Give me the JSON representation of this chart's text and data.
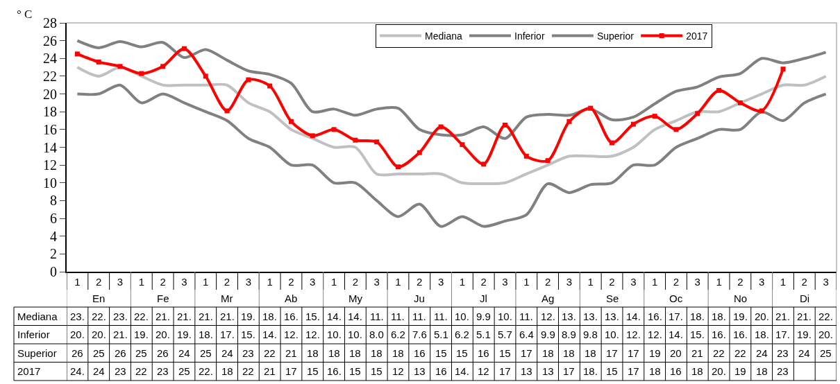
{
  "chart_data": {
    "type": "line",
    "ylabel": "° C",
    "ylim": [
      0,
      28
    ],
    "yticks": [
      0,
      2,
      4,
      6,
      8,
      10,
      12,
      14,
      16,
      18,
      20,
      22,
      24,
      26,
      28
    ],
    "legend": "top",
    "line_style": "solid",
    "categories": [
      "1",
      "2",
      "3",
      "1",
      "2",
      "3",
      "1",
      "2",
      "3",
      "1",
      "2",
      "3",
      "1",
      "2",
      "3",
      "1",
      "2",
      "3",
      "1",
      "2",
      "3",
      "1",
      "2",
      "3",
      "1",
      "2",
      "3",
      "1",
      "2",
      "3",
      "1",
      "2",
      "3",
      "1",
      "2",
      "3"
    ],
    "annotations": [
      "En",
      "Fe",
      "Mr",
      "Ab",
      "My",
      "Ju",
      "Jl",
      "Ag",
      "Se",
      "Oc",
      "No",
      "Di"
    ],
    "series": [
      {
        "name": "Mediana",
        "color": "#c0c0c0",
        "marker": "none",
        "values": [
          23,
          22,
          23,
          22,
          21,
          21,
          21,
          21,
          19,
          18,
          16,
          15,
          14,
          14,
          11,
          11,
          11,
          11,
          10,
          9.9,
          10,
          11,
          12,
          13,
          13,
          13,
          14,
          16,
          17,
          18,
          18,
          19,
          20,
          21,
          21,
          22
        ],
        "value_labels": [
          "23.",
          "22.",
          "23.",
          "22.",
          "21.",
          "21.",
          "21.",
          "21.",
          "19.",
          "18.",
          "16.",
          "15.",
          "14.",
          "14.",
          "11.",
          "11.",
          "11.",
          "11.",
          "10.",
          "9.9",
          "10.",
          "11.",
          "12.",
          "13.",
          "13.",
          "13.",
          "14.",
          "16.",
          "17.",
          "18.",
          "18.",
          "19.",
          "20.",
          "21.",
          "21.",
          "22."
        ]
      },
      {
        "name": "Inferior",
        "color": "#808080",
        "marker": "none",
        "values": [
          20,
          20,
          21,
          19,
          20,
          19,
          18,
          17,
          15,
          14,
          12,
          12,
          10,
          10,
          8.0,
          6.2,
          7.6,
          5.1,
          6.2,
          5.1,
          5.7,
          6.4,
          9.9,
          8.9,
          9.8,
          10,
          12,
          12,
          14,
          15,
          16,
          16,
          18,
          17,
          19,
          20
        ],
        "value_labels": [
          "20.",
          "20.",
          "21.",
          "19.",
          "20.",
          "19.",
          "18.",
          "17.",
          "15.",
          "14.",
          "12.",
          "12.",
          "10.",
          "10.",
          "8.0",
          "6.2",
          "7.6",
          "5.1",
          "6.2",
          "5.1",
          "5.7",
          "6.4",
          "9.9",
          "8.9",
          "9.8",
          "10.",
          "12.",
          "12.",
          "14.",
          "15.",
          "16.",
          "16.",
          "18.",
          "17.",
          "19.",
          "20."
        ]
      },
      {
        "name": "Superior",
        "color": "#808080",
        "marker": "none",
        "values": [
          26,
          25.2,
          25.9,
          25.3,
          25.8,
          24.1,
          25.0,
          23.8,
          22.6,
          22.2,
          21.2,
          18.0,
          18.3,
          17.6,
          18.3,
          18.4,
          16.0,
          15.4,
          15.4,
          16.3,
          15.0,
          17.4,
          17.7,
          17.6,
          18.3,
          17.1,
          17.4,
          18.9,
          20.3,
          20.8,
          21.9,
          22.3,
          24.0,
          23.5,
          24.0,
          24.7
        ],
        "value_labels": [
          "26",
          "25",
          "26",
          "25",
          "26",
          "24",
          "25",
          "24",
          "23",
          "22",
          "21",
          "18",
          "18",
          "18",
          "18",
          "18",
          "16",
          "15",
          "15",
          "16",
          "15",
          "17",
          "18",
          "18",
          "18",
          "17",
          "17",
          "19",
          "20",
          "21",
          "22",
          "22",
          "24",
          "23",
          "24",
          "25"
        ]
      },
      {
        "name": "2017",
        "color": "#ff0000",
        "marker": "square",
        "values": [
          24.5,
          23.6,
          23.1,
          22.3,
          23.1,
          25.1,
          22,
          18.1,
          21.6,
          20.9,
          16.9,
          15.3,
          16,
          14.8,
          14.6,
          11.8,
          13.4,
          16.3,
          14.3,
          12.1,
          16.5,
          13.0,
          12.5,
          16.9,
          18.4,
          14.5,
          16.6,
          17.5,
          16.0,
          17.8,
          20.4,
          19.0,
          18.1,
          22.8,
          null,
          null
        ],
        "value_labels": [
          "24.",
          "24",
          "23",
          "22",
          "23",
          "25",
          "22.",
          "18",
          "22",
          "21",
          "17",
          "15",
          "16.",
          "15",
          "15",
          "12",
          "13",
          "16",
          "14.",
          "12",
          "17",
          "13",
          "13",
          "17",
          "18.",
          "15",
          "17",
          "18",
          "16",
          "18",
          "20.",
          "19",
          "18",
          "23",
          null,
          null
        ]
      }
    ]
  }
}
